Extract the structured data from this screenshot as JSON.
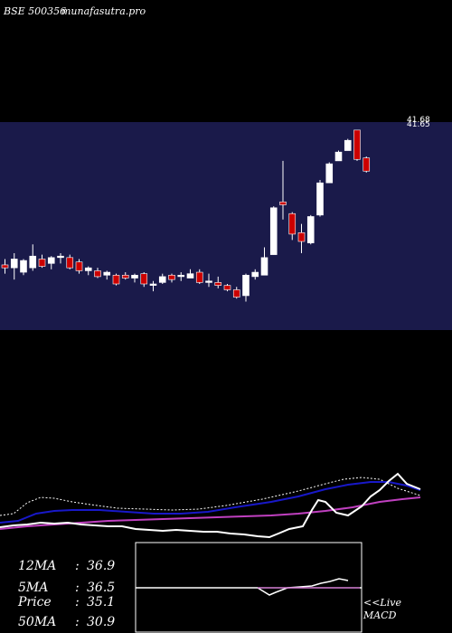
{
  "header": {
    "ticker": "BSE 500356",
    "site": "munafasutra.pro"
  },
  "price_axis": {
    "labels": [
      "41.68",
      "41.65"
    ]
  },
  "colors": {
    "background": "#000000",
    "price_panel": "#1a1a4a",
    "up_candle": "#ffffff",
    "down_candle": "#cc0000",
    "ma_slow": "#1818c8",
    "ma_mid": "#c040c0",
    "ma_fast": "#ffffff",
    "macd_signal": "#c040c0"
  },
  "stats": [
    {
      "label": "12MA",
      "value": "36.9"
    },
    {
      "label": "5MA",
      "value": "36.5"
    },
    {
      "label": "Price",
      "value": "35.1"
    },
    {
      "label": "50MA",
      "value": "30.9"
    }
  ],
  "macd_caption": [
    "<<Live",
    "MACD"
  ],
  "chart_data": {
    "type": "candlestick",
    "y_range": [
      28,
      41.7
    ],
    "candles": [
      {
        "o": 32.2,
        "h": 32.6,
        "l": 31.6,
        "c": 32.0
      },
      {
        "o": 32.0,
        "h": 33.0,
        "l": 31.2,
        "c": 32.6
      },
      {
        "o": 31.7,
        "h": 32.6,
        "l": 31.5,
        "c": 32.5
      },
      {
        "o": 32.0,
        "h": 33.6,
        "l": 31.8,
        "c": 32.8
      },
      {
        "o": 32.6,
        "h": 32.9,
        "l": 32.0,
        "c": 32.1
      },
      {
        "o": 32.3,
        "h": 32.8,
        "l": 31.9,
        "c": 32.7
      },
      {
        "o": 32.7,
        "h": 33.0,
        "l": 32.3,
        "c": 32.8
      },
      {
        "o": 32.7,
        "h": 32.9,
        "l": 31.9,
        "c": 32.0
      },
      {
        "o": 32.4,
        "h": 32.6,
        "l": 31.6,
        "c": 31.8
      },
      {
        "o": 31.8,
        "h": 32.1,
        "l": 31.5,
        "c": 32.0
      },
      {
        "o": 31.8,
        "h": 32.0,
        "l": 31.3,
        "c": 31.4
      },
      {
        "o": 31.5,
        "h": 31.8,
        "l": 31.2,
        "c": 31.7
      },
      {
        "o": 31.5,
        "h": 31.6,
        "l": 30.8,
        "c": 30.9
      },
      {
        "o": 31.5,
        "h": 31.7,
        "l": 31.2,
        "c": 31.3
      },
      {
        "o": 31.3,
        "h": 31.6,
        "l": 31.0,
        "c": 31.5
      },
      {
        "o": 31.6,
        "h": 31.7,
        "l": 30.7,
        "c": 30.9
      },
      {
        "o": 30.8,
        "h": 31.1,
        "l": 30.4,
        "c": 30.9
      },
      {
        "o": 31.0,
        "h": 31.6,
        "l": 30.9,
        "c": 31.4
      },
      {
        "o": 31.5,
        "h": 31.6,
        "l": 31.0,
        "c": 31.2
      },
      {
        "o": 31.4,
        "h": 31.7,
        "l": 31.1,
        "c": 31.5
      },
      {
        "o": 31.3,
        "h": 31.9,
        "l": 31.3,
        "c": 31.6
      },
      {
        "o": 31.7,
        "h": 31.9,
        "l": 30.9,
        "c": 31.0
      },
      {
        "o": 31.0,
        "h": 31.6,
        "l": 30.7,
        "c": 31.1
      },
      {
        "o": 31.0,
        "h": 31.4,
        "l": 30.6,
        "c": 30.8
      },
      {
        "o": 30.8,
        "h": 30.9,
        "l": 30.4,
        "c": 30.5
      },
      {
        "o": 30.5,
        "h": 30.7,
        "l": 29.9,
        "c": 30.0
      },
      {
        "o": 30.1,
        "h": 31.6,
        "l": 29.7,
        "c": 31.5
      },
      {
        "o": 31.4,
        "h": 31.9,
        "l": 31.2,
        "c": 31.7
      },
      {
        "o": 31.5,
        "h": 33.4,
        "l": 31.5,
        "c": 32.7
      },
      {
        "o": 32.9,
        "h": 36.2,
        "l": 32.9,
        "c": 36.1
      },
      {
        "o": 36.5,
        "h": 39.3,
        "l": 35.3,
        "c": 36.3
      },
      {
        "o": 35.7,
        "h": 35.8,
        "l": 33.9,
        "c": 34.3
      },
      {
        "o": 34.4,
        "h": 35.0,
        "l": 33.0,
        "c": 33.8
      },
      {
        "o": 33.7,
        "h": 35.6,
        "l": 33.6,
        "c": 35.5
      },
      {
        "o": 35.6,
        "h": 38.0,
        "l": 35.5,
        "c": 37.8
      },
      {
        "o": 37.8,
        "h": 39.2,
        "l": 37.8,
        "c": 39.1
      },
      {
        "o": 39.3,
        "h": 40.0,
        "l": 39.3,
        "c": 39.9
      },
      {
        "o": 40.0,
        "h": 40.8,
        "l": 40.0,
        "c": 40.7
      },
      {
        "o": 41.4,
        "h": 41.4,
        "l": 39.3,
        "c": 39.4
      },
      {
        "o": 39.5,
        "h": 39.6,
        "l": 38.5,
        "c": 38.6
      }
    ]
  }
}
